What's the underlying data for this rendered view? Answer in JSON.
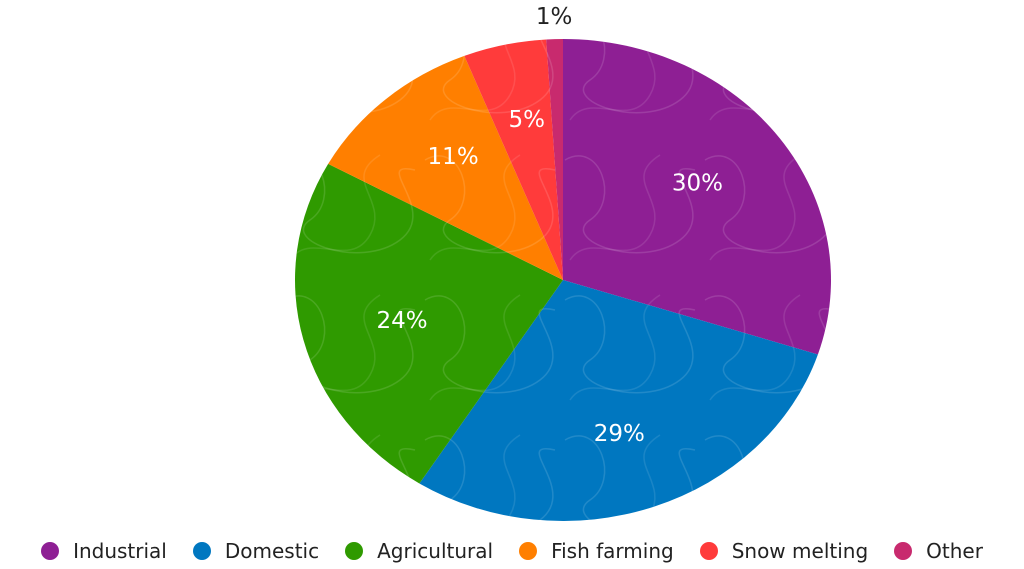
{
  "chart_data": {
    "type": "pie",
    "title": "",
    "categories": [
      "Industrial",
      "Domestic",
      "Agricultural",
      "Fish farming",
      "Snow melting",
      "Other"
    ],
    "values": [
      30,
      29,
      24,
      11,
      5,
      1
    ],
    "labels": [
      "30%",
      "29%",
      "24%",
      "11%",
      "5%",
      "1%"
    ],
    "colors": [
      "#8e1f94",
      "#0077c0",
      "#2f9a00",
      "#ff7f00",
      "#ff3b3b",
      "#c82a6e"
    ],
    "legend_position": "bottom"
  }
}
